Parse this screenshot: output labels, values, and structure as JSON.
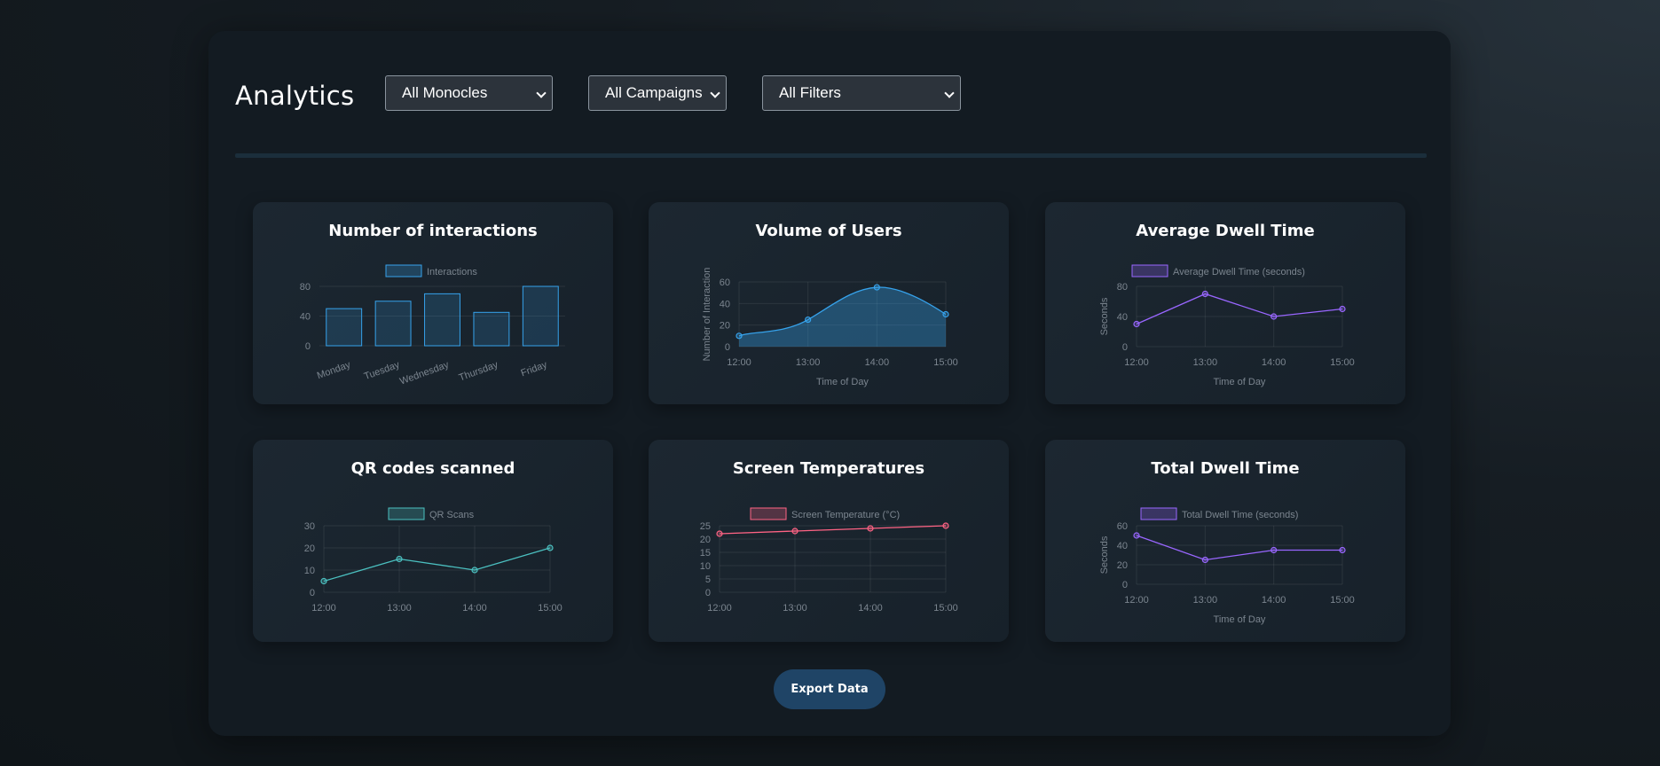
{
  "header": {
    "title": "Analytics",
    "filters": {
      "monocles": "All Monocles",
      "campaigns": "All Campaigns",
      "filters": "All Filters"
    }
  },
  "export_label": "Export Data",
  "colors": {
    "blue": "#36a2eb",
    "purple": "#9966ff",
    "teal": "#4bc0c0",
    "red": "#ff6384"
  },
  "chart_data": [
    {
      "id": "interactions",
      "type": "bar",
      "title": "Number of interactions",
      "legend": "Interactions",
      "color": "#36a2eb",
      "categories": [
        "Monday",
        "Tuesday",
        "Wednesday",
        "Thursday",
        "Friday"
      ],
      "values": [
        50,
        60,
        70,
        45,
        80
      ],
      "ylim": [
        0,
        80
      ],
      "yticks": [
        0,
        40,
        80
      ],
      "xlabel": "",
      "ylabel": ""
    },
    {
      "id": "users",
      "type": "area",
      "title": "Volume of Users",
      "legend": "",
      "color": "#36a2eb",
      "categories": [
        "12:00",
        "13:00",
        "14:00",
        "15:00"
      ],
      "values": [
        10,
        25,
        55,
        30
      ],
      "ylim": [
        0,
        60
      ],
      "yticks": [
        0,
        20,
        40,
        60
      ],
      "xlabel": "Time of Day",
      "ylabel": "Number of Interaction"
    },
    {
      "id": "avg_dwell",
      "type": "line",
      "title": "Average Dwell Time",
      "legend": "Average Dwell Time (seconds)",
      "color": "#9966ff",
      "categories": [
        "12:00",
        "13:00",
        "14:00",
        "15:00"
      ],
      "values": [
        30,
        70,
        40,
        50
      ],
      "ylim": [
        0,
        80
      ],
      "yticks": [
        0,
        40,
        80
      ],
      "xlabel": "Time of Day",
      "ylabel": "Seconds"
    },
    {
      "id": "qr",
      "type": "line",
      "title": "QR codes scanned",
      "legend": "QR Scans",
      "color": "#4bc0c0",
      "categories": [
        "12:00",
        "13:00",
        "14:00",
        "15:00"
      ],
      "values": [
        5,
        15,
        10,
        20
      ],
      "ylim": [
        0,
        30
      ],
      "yticks": [
        0,
        10,
        20,
        30
      ],
      "xlabel": "",
      "ylabel": ""
    },
    {
      "id": "temps",
      "type": "line",
      "title": "Screen Temperatures",
      "legend": "Screen Temperature (°C)",
      "color": "#ff6384",
      "categories": [
        "12:00",
        "13:00",
        "14:00",
        "15:00"
      ],
      "values": [
        22,
        23,
        24,
        25
      ],
      "ylim": [
        0,
        25
      ],
      "yticks": [
        0,
        5,
        10,
        15,
        20,
        25
      ],
      "xlabel": "",
      "ylabel": ""
    },
    {
      "id": "total_dwell",
      "type": "line",
      "title": "Total Dwell Time",
      "legend": "Total Dwell Time (seconds)",
      "color": "#9966ff",
      "categories": [
        "12:00",
        "13:00",
        "14:00",
        "15:00"
      ],
      "values": [
        50,
        25,
        35,
        35
      ],
      "ylim": [
        0,
        60
      ],
      "yticks": [
        0,
        20,
        40,
        60
      ],
      "xlabel": "Time of Day",
      "ylabel": "Seconds"
    }
  ]
}
